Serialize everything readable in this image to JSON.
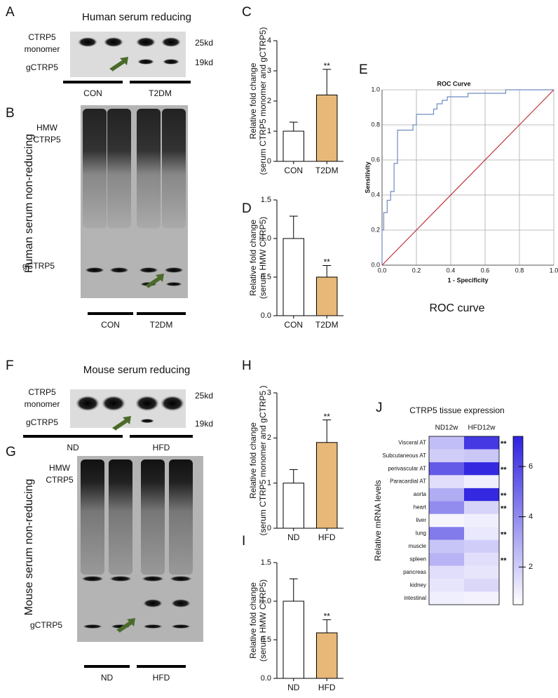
{
  "blots": [
    {
      "panel": "A",
      "title": "Human serum reducing",
      "labels": [
        [
          "CTRP5",
          "monomer"
        ],
        [
          "gCTRP5"
        ]
      ],
      "sizes": [
        "25kd",
        "19kd"
      ],
      "groups": [
        "CON",
        "T2DM"
      ]
    },
    {
      "panel": "B",
      "side_title": "Human serum non-reducing",
      "labels": [
        [
          "HMW",
          "CTRP5"
        ],
        [
          "gCTRP5"
        ]
      ],
      "groups": [
        "CON",
        "T2DM"
      ]
    },
    {
      "panel": "F",
      "title": "Mouse serum reducing",
      "labels": [
        [
          "CTRP5",
          "monomer"
        ],
        [
          "gCTRP5"
        ]
      ],
      "sizes": [
        "25kd",
        "19kd"
      ],
      "groups": [
        "ND",
        "HFD"
      ]
    },
    {
      "panel": "G",
      "side_title": "Mouse serum non-reducing",
      "labels": [
        [
          "HMW",
          "CTRP5"
        ],
        [
          "gCTRP5"
        ]
      ],
      "groups": [
        "ND",
        "HFD"
      ]
    }
  ],
  "chart_data": [
    {
      "type": "bar",
      "panel": "C",
      "ylabel": [
        "Relative fold change",
        "(serum CTRP5 monomer and gCTRP5)"
      ],
      "categories": [
        "CON",
        "T2DM"
      ],
      "values": [
        1.0,
        2.2
      ],
      "errors": [
        0.3,
        0.85
      ],
      "annotations": [
        null,
        "**"
      ],
      "colors": [
        "#ffffff",
        "#e8b878"
      ],
      "ylim": [
        0,
        4
      ],
      "yticks": [
        0,
        1,
        2,
        3,
        4
      ]
    },
    {
      "type": "bar",
      "panel": "D",
      "ylabel": [
        "Relative fold change",
        "(serum HMW CTRP5)"
      ],
      "categories": [
        "CON",
        "T2DM"
      ],
      "values": [
        1.0,
        0.5
      ],
      "errors": [
        0.29,
        0.15
      ],
      "annotations": [
        null,
        "**"
      ],
      "colors": [
        "#ffffff",
        "#e8b878"
      ],
      "ylim": [
        0,
        1.5
      ],
      "yticks": [
        {
          "value": 0,
          "label": "0.0"
        },
        0.5,
        {
          "value": 1,
          "label": "1.0"
        },
        1.5
      ]
    },
    {
      "type": "line",
      "panel": "E",
      "title": "ROC Curve",
      "xlabel": "1 - Specificity",
      "ylabel": "Sensitivity",
      "caption": "ROC curve",
      "grid": true,
      "xlim": [
        0,
        1
      ],
      "ylim": [
        0,
        1
      ],
      "xticks": [
        {
          "value": 0,
          "label": "0.0"
        },
        0.2,
        0.4,
        0.6,
        0.8,
        {
          "value": 1,
          "label": "1.0"
        }
      ],
      "yticks": [
        {
          "value": 0,
          "label": "0.0"
        },
        0.2,
        0.4,
        0.6,
        0.8,
        {
          "value": 1,
          "label": "1.0"
        }
      ],
      "series": [
        {
          "color": "#6f8cc0",
          "x": [
            0,
            0,
            0.01,
            0.01,
            0.03,
            0.03,
            0.05,
            0.05,
            0.07,
            0.07,
            0.09,
            0.09,
            0.18,
            0.18,
            0.2,
            0.2,
            0.3,
            0.3,
            0.32,
            0.32,
            0.35,
            0.35,
            0.38,
            0.38,
            0.5,
            0.5,
            0.72,
            0.72,
            1.0
          ],
          "values": [
            0,
            0.2,
            0.2,
            0.3,
            0.3,
            0.37,
            0.37,
            0.42,
            0.42,
            0.58,
            0.58,
            0.77,
            0.77,
            0.8,
            0.8,
            0.86,
            0.86,
            0.89,
            0.89,
            0.92,
            0.92,
            0.94,
            0.94,
            0.96,
            0.96,
            0.98,
            0.98,
            1.0,
            1.0
          ]
        },
        {
          "color": "#c0303a",
          "x": [
            0,
            1
          ],
          "values": [
            0,
            1
          ]
        }
      ]
    },
    {
      "type": "bar",
      "panel": "H",
      "ylabel": [
        "Relative fold change",
        "(serum CTRP5 monomer and gCTRP5 )"
      ],
      "categories": [
        "ND",
        "HFD"
      ],
      "values": [
        1.0,
        1.9
      ],
      "errors": [
        0.3,
        0.5
      ],
      "annotations": [
        null,
        "**"
      ],
      "colors": [
        "#ffffff",
        "#e8b878"
      ],
      "ylim": [
        0,
        3
      ],
      "yticks": [
        0,
        1,
        2,
        3
      ]
    },
    {
      "type": "bar",
      "panel": "I",
      "ylabel": [
        "Relative fold change",
        "(serum HMW CTRP5)"
      ],
      "categories": [
        "ND",
        "HFD"
      ],
      "values": [
        1.0,
        0.59
      ],
      "errors": [
        0.29,
        0.17
      ],
      "annotations": [
        null,
        "**"
      ],
      "colors": [
        "#ffffff",
        "#e8b878"
      ],
      "ylim": [
        0,
        1.5
      ],
      "yticks": [
        {
          "value": 0,
          "label": "0.0"
        },
        0.5,
        {
          "value": 1,
          "label": "1.0"
        },
        1.5
      ]
    },
    {
      "type": "heatmap",
      "panel": "J",
      "title": "CTRP5 tissue expression",
      "ylabel": "Relative mRNA levels",
      "columns": [
        "ND12w",
        "HFD12w"
      ],
      "rows": [
        "Visceral AT",
        "Subcutaneous AT",
        "perivascular AT",
        "Paracardial AT",
        "aorta",
        "heart",
        "liver",
        "lung",
        "muscle",
        "spleen",
        "pancreas",
        "kidney",
        "intestinal"
      ],
      "values": [
        [
          2.5,
          6.5
        ],
        [
          2.0,
          2.2
        ],
        [
          5.5,
          7.0
        ],
        [
          1.5,
          1.0
        ],
        [
          3.0,
          7.0
        ],
        [
          4.0,
          1.8
        ],
        [
          0.8,
          1.0
        ],
        [
          4.5,
          1.2
        ],
        [
          2.3,
          2.0
        ],
        [
          2.8,
          1.5
        ],
        [
          1.5,
          1.3
        ],
        [
          1.3,
          1.7
        ],
        [
          1.0,
          0.9
        ]
      ],
      "annotations": [
        "**",
        null,
        "**",
        null,
        "**",
        "**",
        null,
        "**",
        null,
        "**",
        null,
        null,
        null
      ],
      "zlim": [
        0.5,
        7.2
      ],
      "zticks": [
        2,
        4,
        6
      ],
      "color": "#2e22e0"
    }
  ]
}
